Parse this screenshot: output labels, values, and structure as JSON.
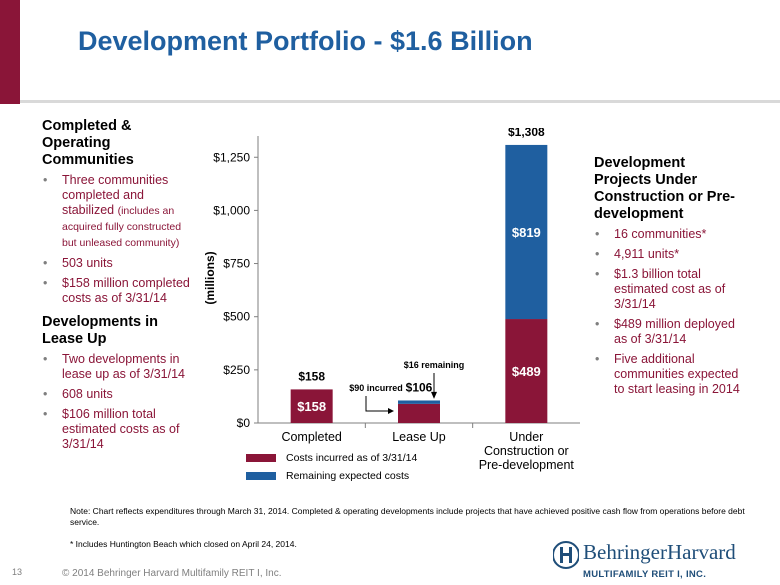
{
  "title": "Development Portfolio - $1.6 Billion",
  "left": {
    "sections": [
      {
        "heading": "Completed & Operating Communities",
        "bullets": [
          {
            "text": "Three communities completed and stabilized ",
            "note": "(includes an acquired fully constructed but unleased community)"
          },
          {
            "text": "503 units"
          },
          {
            "text": "$158 million completed costs as of 3/31/14"
          }
        ]
      },
      {
        "heading": "Developments in Lease Up",
        "bullets": [
          {
            "text": "Two developments in lease up as of 3/31/14"
          },
          {
            "text": "608 units"
          },
          {
            "text": "$106 million total estimated costs as of 3/31/14"
          }
        ]
      }
    ]
  },
  "right": {
    "heading": "Development Projects Under Construction or Pre-development",
    "bullets": [
      "16 communities*",
      "4,911 units*",
      "$1.3 billion total estimated cost as of 3/31/14",
      "$489 million deployed as of 3/31/14",
      "Five additional communities expected to start leasing in 2014"
    ]
  },
  "chart_data": {
    "type": "bar",
    "stacked": true,
    "categories": [
      [
        "Completed"
      ],
      [
        "Lease Up"
      ],
      [
        "Under",
        "Construction or",
        "Pre-development"
      ]
    ],
    "series": [
      {
        "name": "Costs incurred as of 3/31/14",
        "values": [
          158,
          90,
          489
        ],
        "color": "#8a1538",
        "inner_labels": [
          "$158",
          "",
          "$489"
        ]
      },
      {
        "name": "Remaining expected costs",
        "values": [
          0,
          16,
          819
        ],
        "color": "#1f5fa0",
        "inner_labels": [
          "",
          "",
          "$819"
        ]
      }
    ],
    "totals": [
      "$158",
      "$106",
      "$1,308"
    ],
    "yticks": [
      0,
      250,
      500,
      750,
      1000,
      1250
    ],
    "ytick_labels": [
      "$0",
      "$250",
      "$500",
      "$750",
      "$1,000",
      "$1,250"
    ],
    "ylim": [
      0,
      1350
    ],
    "ylabel": "(millions)",
    "annotations": [
      {
        "text": "$90 incurred",
        "category": 1,
        "part": "incurred"
      },
      {
        "text": "$16 remaining",
        "category": 1,
        "part": "remaining"
      }
    ]
  },
  "notes": [
    "Note: Chart reflects expenditures through March 31, 2014. Completed & operating developments include projects that have achieved positive cash flow from operations before debt service.",
    "* Includes Huntington Beach which closed on April 24, 2014."
  ],
  "footer": {
    "page_number": "13",
    "copyright": "© 2014 Behringer Harvard Multifamily REIT I, Inc.",
    "logo_name": "BehringerHarvard",
    "logo_sub": "MULTIFAMILY REIT I, INC."
  },
  "colors": {
    "accent": "#8a1538",
    "title": "#1f5fa0",
    "remaining": "#1f5fa0"
  }
}
